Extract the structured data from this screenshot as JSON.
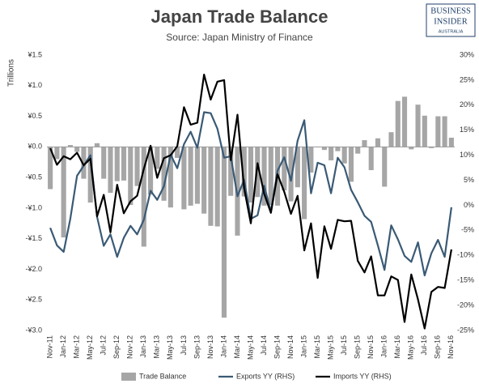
{
  "chart_data": {
    "type": "combo",
    "title": "Japan Trade Balance",
    "subtitle": "Source: Japan Ministry of Finance",
    "y_label": "Trillions",
    "categories": [
      "Nov-11",
      null,
      "Jan-12",
      null,
      "Mar-12",
      null,
      "May-12",
      null,
      "Jul-12",
      null,
      "Sep-12",
      null,
      "Nov-12",
      null,
      "Jan-13",
      null,
      "Mar-13",
      null,
      "May-13",
      null,
      "Jul-13",
      null,
      "Sep-13",
      null,
      "Nov-13",
      null,
      "Jan-14",
      null,
      "Mar-14",
      null,
      "May-14",
      null,
      "Jul-14",
      null,
      "Sep-14",
      null,
      "Nov-14",
      null,
      "Jan-15",
      null,
      "Mar-15",
      null,
      "May-15",
      null,
      "Jul-15",
      null,
      "Sep-15",
      null,
      "Nov-15",
      null,
      "Jan-16",
      null,
      "Mar-16",
      null,
      "May-16",
      null,
      "Jul-16",
      null,
      "Sep-16",
      null,
      "Nov-16"
    ],
    "series": [
      {
        "name": "Trade Balance",
        "type": "bar",
        "color": "#a6a6a6",
        "values": [
          -0.69,
          -0.2,
          -1.48,
          0.03,
          -0.08,
          -0.52,
          -0.91,
          0.06,
          -0.52,
          -0.75,
          -0.56,
          -0.55,
          -0.95,
          -0.64,
          -1.63,
          -0.78,
          -0.36,
          -0.88,
          -0.99,
          -0.18,
          -1.02,
          -0.96,
          -0.93,
          -1.09,
          -1.29,
          -1.3,
          -2.79,
          -0.8,
          -1.45,
          -0.81,
          -0.91,
          -0.82,
          -0.96,
          -0.95,
          -0.96,
          -0.71,
          -0.89,
          -0.66,
          -1.18,
          -0.42,
          0.0,
          -0.05,
          -0.22,
          -0.07,
          -0.27,
          -0.57,
          -0.11,
          0.11,
          -0.38,
          0.14,
          -0.65,
          0.24,
          0.75,
          0.82,
          -0.04,
          0.69,
          0.51,
          -0.02,
          0.5,
          0.5,
          0.15
        ]
      },
      {
        "name": "Exports YY (RHS)",
        "type": "line",
        "axis": "y2",
        "color": "#3a5a75",
        "values": [
          -4.5,
          -8,
          -9.3,
          -2.7,
          5.9,
          7.9,
          10,
          -2.3,
          -8.1,
          -5.8,
          -10.3,
          -6.5,
          -4.1,
          -5.8,
          -2.9,
          2.9,
          1.1,
          3.8,
          10.1,
          7.4,
          12.2,
          14.7,
          11.5,
          18.6,
          18.4,
          15.3,
          9.5,
          9.8,
          1.8,
          5.1,
          -2.7,
          -2,
          3.9,
          -1.3,
          6.9,
          9.6,
          4.9,
          12.9,
          17,
          2.4,
          8.5,
          8,
          2.4,
          9.5,
          7.6,
          3.1,
          0.6,
          -2.1,
          -3.3,
          -8,
          -12.9,
          -4,
          -6.8,
          -10.1,
          -11.3,
          -7.4,
          -14,
          -9.6,
          -6.9,
          -10.3,
          -0.4
        ]
      },
      {
        "name": "Imports YY (RHS)",
        "type": "line",
        "axis": "y2",
        "color": "#000000",
        "values": [
          11.4,
          8.1,
          9.8,
          9.2,
          10.5,
          8,
          9.3,
          -2.2,
          2.1,
          -5.4,
          4.1,
          -1.6,
          0.8,
          1.9,
          7.3,
          11.9,
          5.5,
          9.4,
          10,
          11.8,
          19.6,
          16.1,
          16.5,
          26.1,
          21.1,
          24.7,
          25,
          9,
          18.1,
          3.4,
          -3.6,
          8.4,
          2.3,
          -1.5,
          6.2,
          2.7,
          -1.7,
          1.9,
          -9,
          -3.6,
          -14.5,
          -4.2,
          -8.7,
          -2.9,
          -3.2,
          -3.1,
          -11.1,
          -13.4,
          -10.2,
          -18,
          -18,
          -14.2,
          -14.9,
          -23.3,
          -13.8,
          -18.8,
          -24.6,
          -17.3,
          -16.3,
          -16.5,
          -8.8
        ]
      }
    ],
    "ylim": [
      -3.0,
      1.5
    ],
    "yticks": [
      {
        "value": 1.5,
        "label": "¥1.5"
      },
      {
        "value": 1.0,
        "label": "¥1.0"
      },
      {
        "value": 0.5,
        "label": "¥0.5"
      },
      {
        "value": 0,
        "label": "¥0.0"
      },
      {
        "value": -0.5,
        "label": "-¥0.5"
      },
      {
        "value": -1.0,
        "label": "-¥1.0"
      },
      {
        "value": -1.5,
        "label": "-¥1.5"
      },
      {
        "value": -2.0,
        "label": "-¥2.0"
      },
      {
        "value": -2.5,
        "label": "-¥2.5"
      },
      {
        "value": -3.0,
        "label": "-¥3.0"
      }
    ],
    "y2lim": [
      -25,
      30
    ],
    "y2ticks": [
      {
        "value": 30,
        "label": "30%"
      },
      {
        "value": 25,
        "label": "25%"
      },
      {
        "value": 20,
        "label": "20%"
      },
      {
        "value": 15,
        "label": "15%"
      },
      {
        "value": 10,
        "label": "10%"
      },
      {
        "value": 5,
        "label": "5%"
      },
      {
        "value": 0,
        "label": "0%"
      },
      {
        "value": -5,
        "label": "-5%"
      },
      {
        "value": -10,
        "label": "-10%"
      },
      {
        "value": -15,
        "label": "-15%"
      },
      {
        "value": -20,
        "label": "-20%"
      },
      {
        "value": -25,
        "label": "-25%"
      }
    ],
    "legend": "bottom"
  },
  "logo": {
    "line1": "BUSINESS",
    "line2": "INSIDER",
    "line3": "AUSTRALIA"
  }
}
